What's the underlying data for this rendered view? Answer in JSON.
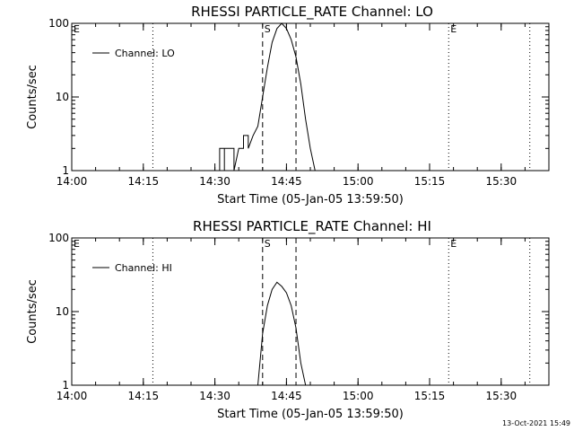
{
  "footer": {
    "timestamp": "13-Oct-2021 15:49"
  },
  "chart_data": [
    {
      "type": "line",
      "title": "RHESSI PARTICLE_RATE Channel: LO",
      "xlabel": "Start Time (05-Jan-05 13:59:50)",
      "ylabel": "Counts/sec",
      "legend": {
        "label": "Channel: LO",
        "placement": "top-left"
      },
      "x_ticks": [
        "14:00",
        "14:15",
        "14:30",
        "14:45",
        "15:00",
        "15:15",
        "15:30"
      ],
      "y_ticks": [
        "1",
        "10",
        "100"
      ],
      "y_scale": "log",
      "xlim": [
        "14:00",
        "15:40"
      ],
      "ylim": [
        1,
        100
      ],
      "markers": [
        {
          "label": "E",
          "time": "14:00",
          "style": "dotted"
        },
        {
          "label": "",
          "time": "14:17",
          "style": "dotted"
        },
        {
          "label": "S",
          "time": "14:40",
          "style": "dashed"
        },
        {
          "label": "",
          "time": "14:47",
          "style": "dashed"
        },
        {
          "label": "E",
          "time": "15:19",
          "style": "dotted"
        },
        {
          "label": "",
          "time": "15:36",
          "style": "dotted"
        }
      ],
      "series": [
        {
          "x": [
            "14:31",
            "14:31",
            "14:32",
            "14:32",
            "14:32",
            "14:33",
            "14:34",
            "14:34",
            "14:35",
            "14:35",
            "14:36",
            "14:36",
            "14:37",
            "14:37",
            "14:38",
            "14:39",
            "14:40",
            "14:41",
            "14:42",
            "14:43",
            "14:44",
            "14:45",
            "14:46",
            "14:47",
            "14:48",
            "14:49",
            "14:50",
            "14:51"
          ],
          "values": [
            1,
            2,
            2,
            1,
            2,
            2,
            2,
            1,
            2,
            2,
            2,
            3,
            3,
            2,
            3,
            4,
            10,
            25,
            55,
            85,
            100,
            85,
            60,
            35,
            15,
            5,
            2,
            1
          ]
        }
      ]
    },
    {
      "type": "line",
      "title": "RHESSI PARTICLE_RATE Channel: HI",
      "xlabel": "Start Time (05-Jan-05 13:59:50)",
      "ylabel": "Counts/sec",
      "legend": {
        "label": "Channel: HI",
        "placement": "top-left"
      },
      "x_ticks": [
        "14:00",
        "14:15",
        "14:30",
        "14:45",
        "15:00",
        "15:15",
        "15:30"
      ],
      "y_ticks": [
        "1",
        "10",
        "100"
      ],
      "y_scale": "log",
      "xlim": [
        "14:00",
        "15:40"
      ],
      "ylim": [
        1,
        100
      ],
      "markers": [
        {
          "label": "E",
          "time": "14:00",
          "style": "dotted"
        },
        {
          "label": "",
          "time": "14:17",
          "style": "dotted"
        },
        {
          "label": "S",
          "time": "14:40",
          "style": "dashed"
        },
        {
          "label": "",
          "time": "14:47",
          "style": "dashed"
        },
        {
          "label": "E",
          "time": "15:19",
          "style": "dotted"
        },
        {
          "label": "",
          "time": "15:36",
          "style": "dotted"
        }
      ],
      "series": [
        {
          "x": [
            "14:39",
            "14:40",
            "14:41",
            "14:42",
            "14:43",
            "14:44",
            "14:45",
            "14:46",
            "14:47",
            "14:48",
            "14:49"
          ],
          "values": [
            1,
            5,
            12,
            20,
            25,
            22,
            18,
            12,
            6,
            2,
            1
          ]
        }
      ]
    }
  ]
}
